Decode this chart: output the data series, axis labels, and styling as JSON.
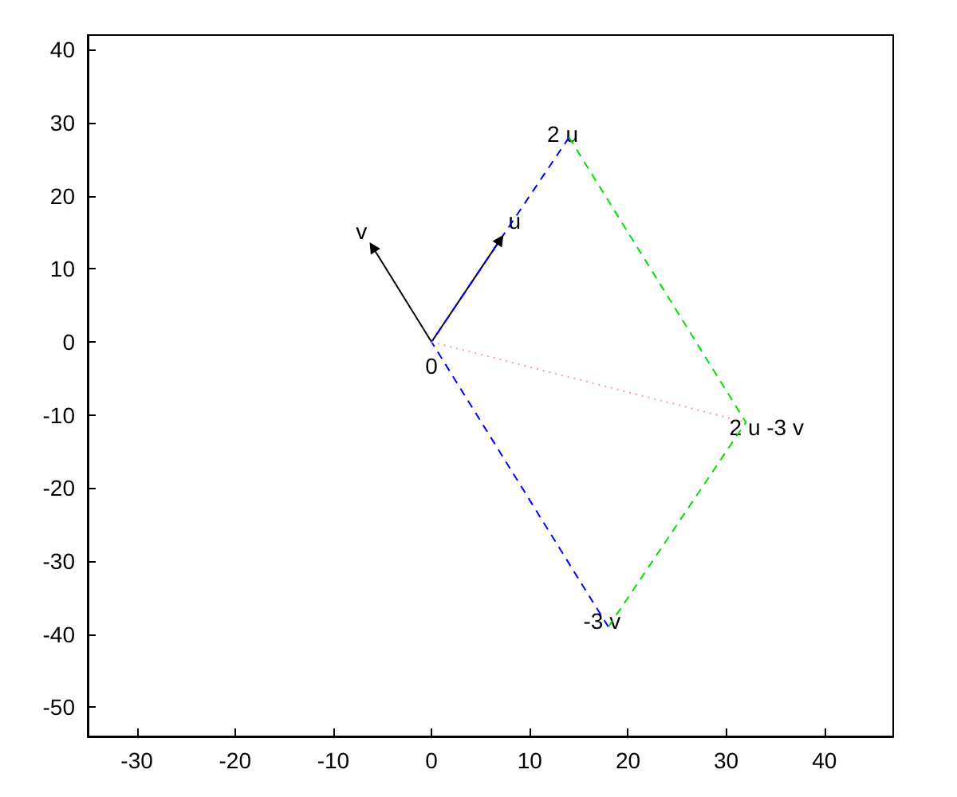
{
  "chart_data": {
    "type": "line",
    "xlim": [
      -35,
      47
    ],
    "ylim": [
      -54,
      42
    ],
    "xticks": [
      -30,
      -20,
      -10,
      0,
      10,
      20,
      30,
      40
    ],
    "yticks": [
      -50,
      -40,
      -30,
      -20,
      -10,
      0,
      10,
      20,
      30,
      40
    ],
    "grid": false,
    "series": [
      {
        "color": "#000000",
        "x": [
          0,
          7
        ],
        "values": [
          0,
          14
        ],
        "line_style": "solid",
        "marker": "triangle"
      },
      {
        "color": "#000000",
        "x": [
          0,
          -6
        ],
        "values": [
          0,
          13
        ],
        "line_style": "solid",
        "marker": "triangle"
      },
      {
        "color": "#0000ff",
        "x": [
          14,
          0,
          18
        ],
        "values": [
          28,
          0,
          -39
        ],
        "line_style": "dashed"
      },
      {
        "color": "#00e000",
        "x": [
          14,
          32,
          18
        ],
        "values": [
          28,
          -11,
          -39
        ],
        "line_style": "dashed"
      },
      {
        "color": "#ff9999",
        "x": [
          0,
          32
        ],
        "values": [
          0,
          -11
        ],
        "line_style": "dotted"
      }
    ],
    "annotations": [
      {
        "text": "u",
        "x": 7,
        "y": 14
      },
      {
        "text": "v",
        "x": -6,
        "y": 13
      },
      {
        "text": "2 u",
        "x": 14,
        "y": 28
      },
      {
        "text": "0",
        "x": 0,
        "y": 0
      },
      {
        "text": "2 u -3 v",
        "x": 32,
        "y": -11
      },
      {
        "text": "-3 v",
        "x": 18,
        "y": -39
      }
    ]
  }
}
